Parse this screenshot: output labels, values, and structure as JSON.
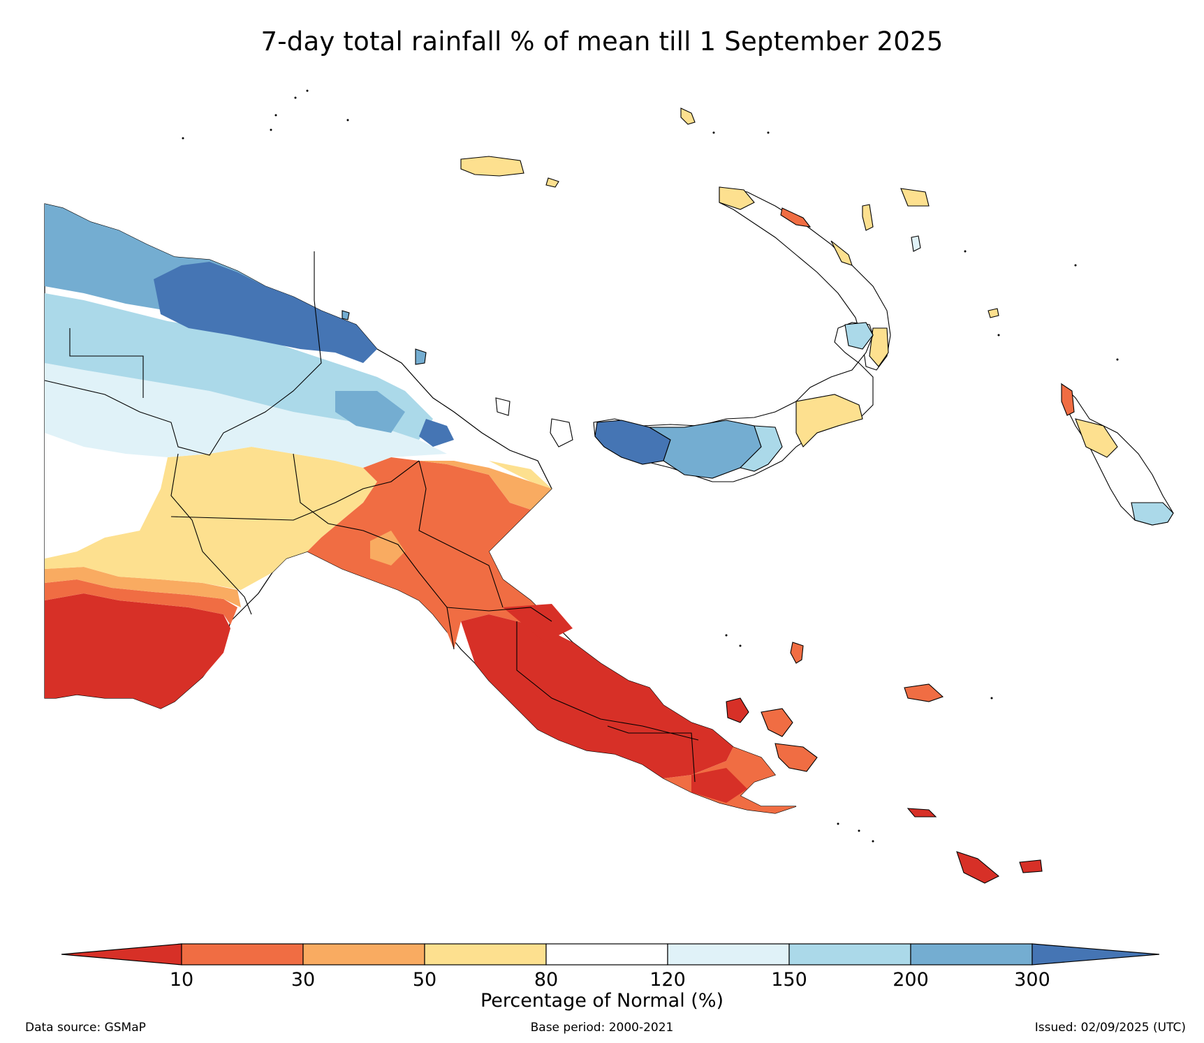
{
  "title": "7-day total rainfall % of mean till 1 September 2025",
  "legend": {
    "label": "Percentage of Normal (%)",
    "ticks": [
      "10",
      "30",
      "50",
      "80",
      "120",
      "150",
      "200",
      "300"
    ],
    "bins": [
      {
        "range": "<10",
        "color": "#d73027"
      },
      {
        "range": "10-30",
        "color": "#f06d43"
      },
      {
        "range": "30-50",
        "color": "#f9ab61"
      },
      {
        "range": "50-80",
        "color": "#fde08f"
      },
      {
        "range": "80-120",
        "color": "#ffffff"
      },
      {
        "range": "120-150",
        "color": "#e0f2f8"
      },
      {
        "range": "150-200",
        "color": "#abd9e9"
      },
      {
        "range": "200-300",
        "color": "#74add1"
      },
      {
        "range": ">300",
        "color": "#4575b4"
      }
    ]
  },
  "footer": {
    "source": "Data source: GSMaP",
    "base_period": "Base period: 2000-2021",
    "issued": "Issued: 02/09/2025 (UTC)"
  }
}
